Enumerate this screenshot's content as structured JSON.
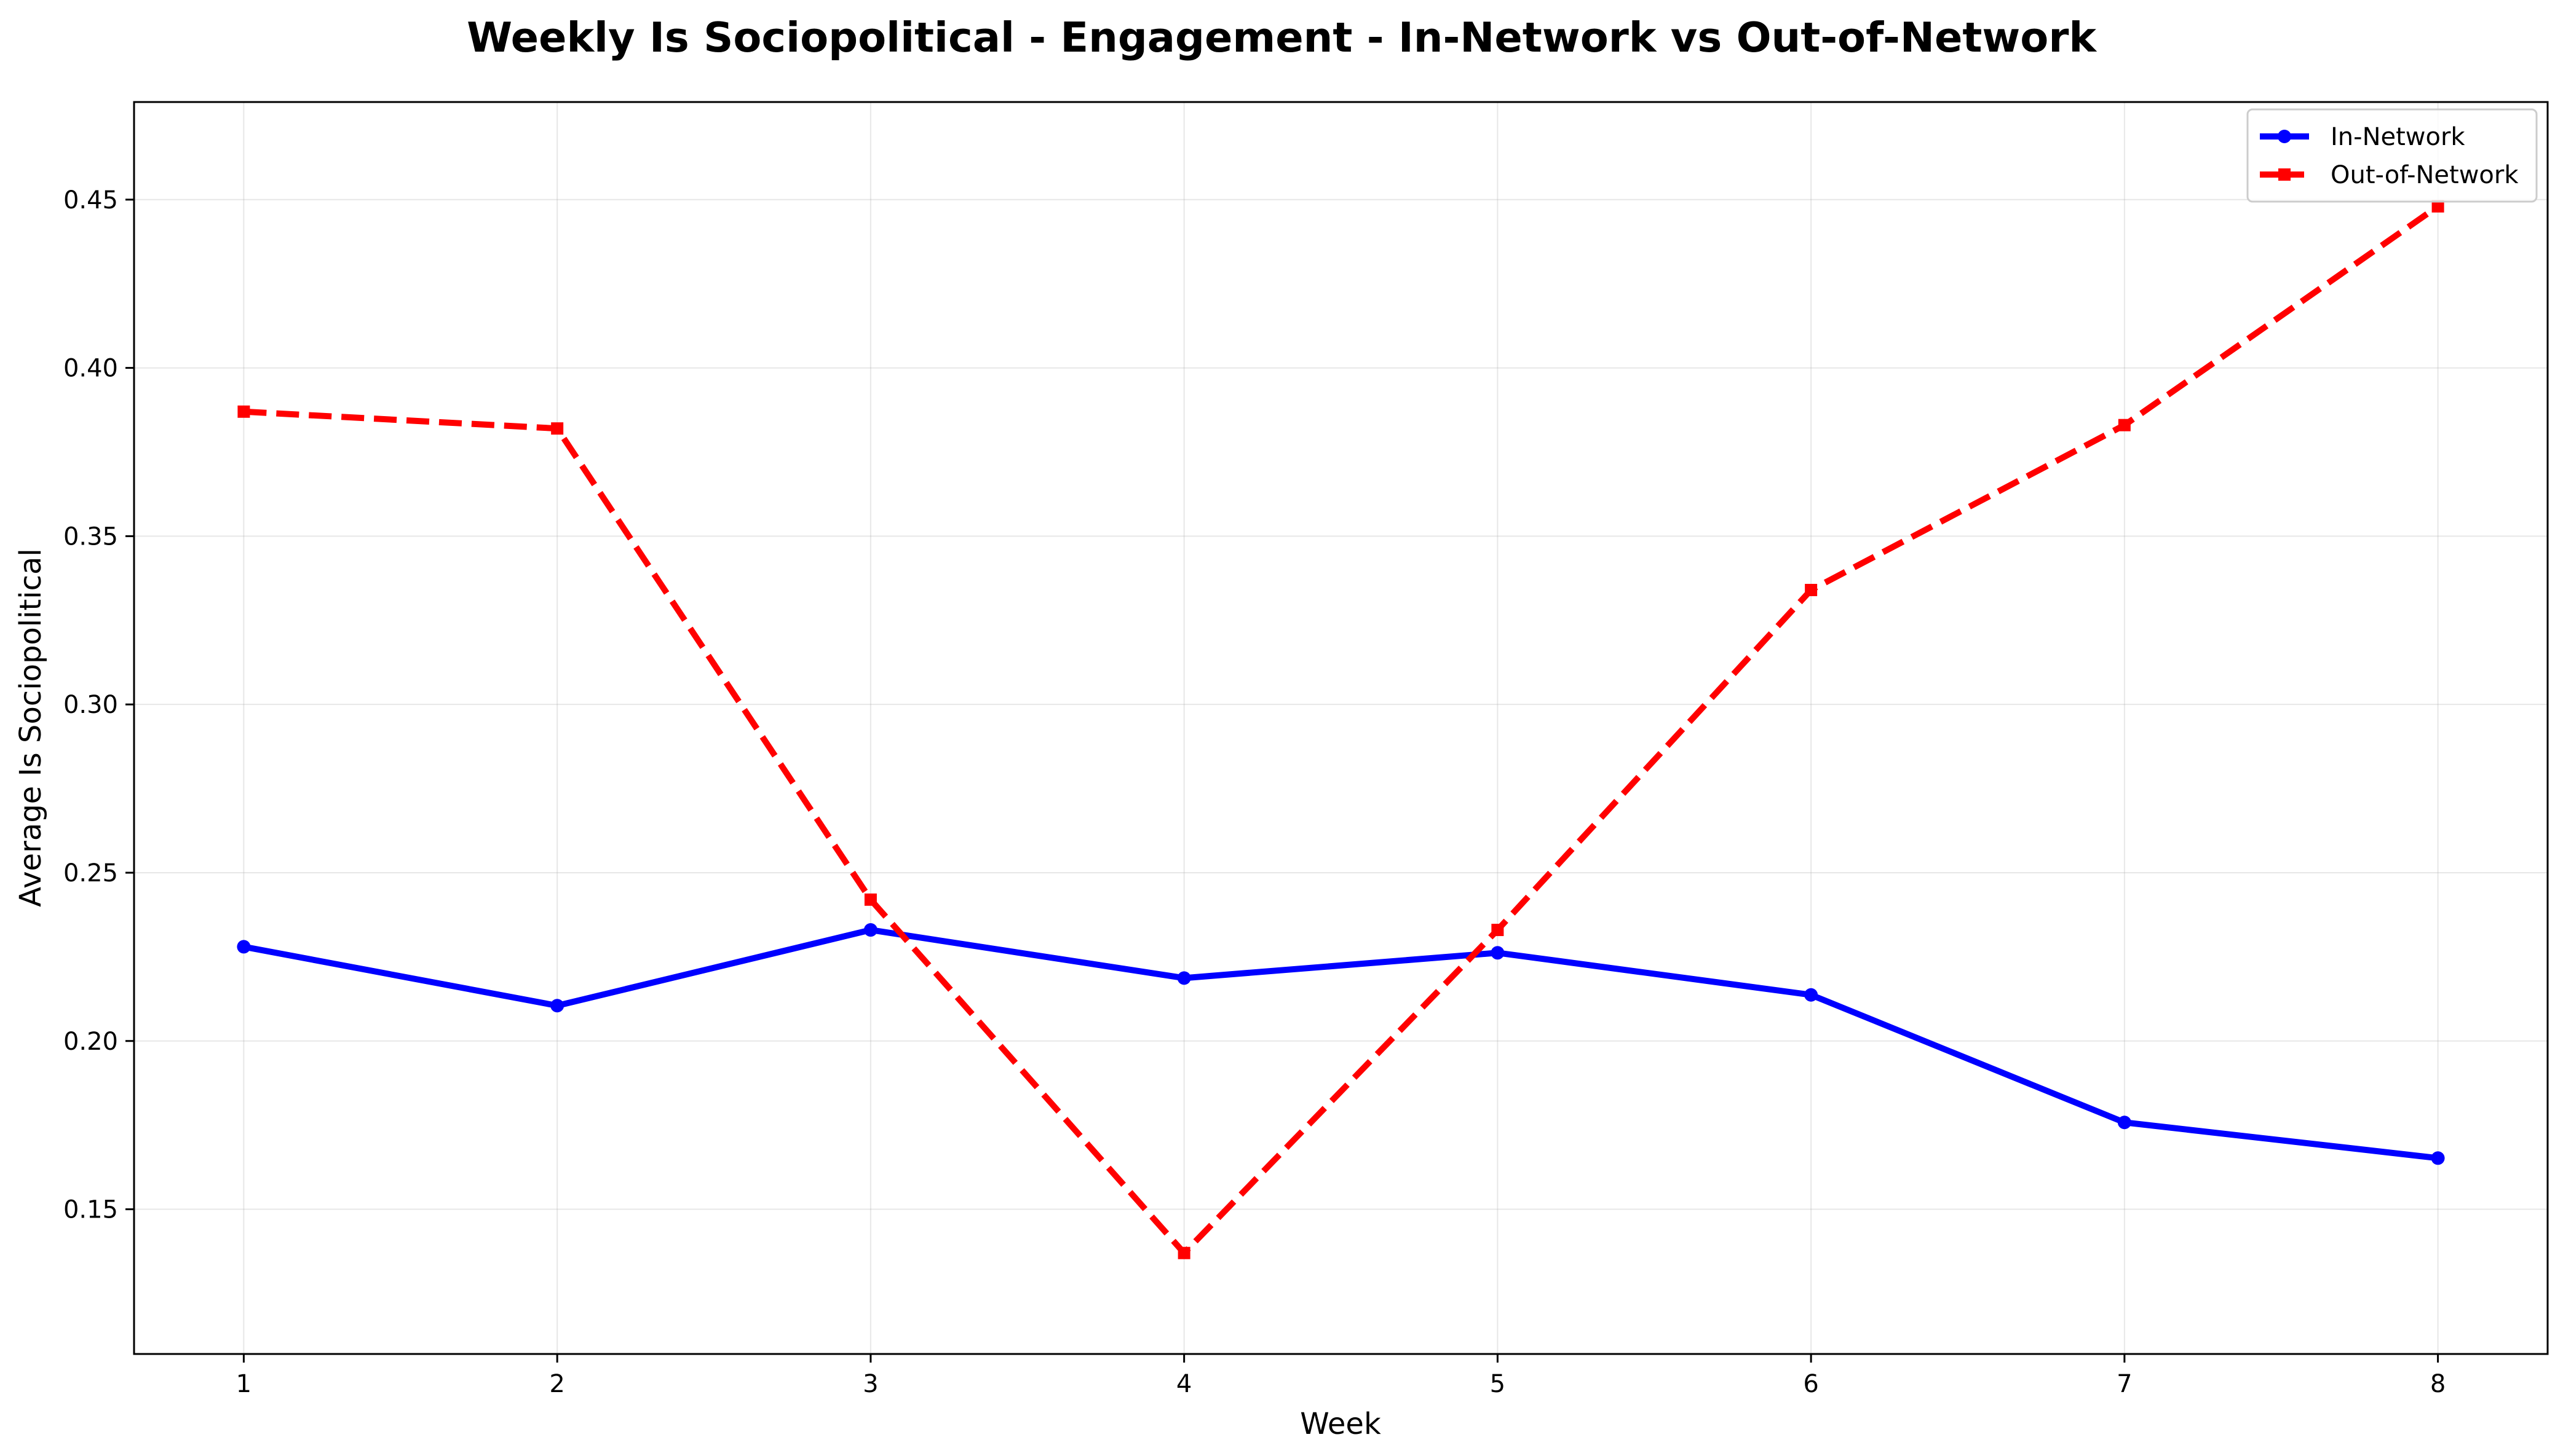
{
  "chart_data": {
    "type": "line",
    "title": "Weekly Is Sociopolitical - Engagement - In-Network vs Out-of-Network",
    "xlabel": "Week",
    "ylabel": "Average Is Sociopolitical",
    "x": [
      1,
      2,
      3,
      4,
      5,
      6,
      7,
      8
    ],
    "x_tick_labels": [
      "1",
      "2",
      "3",
      "4",
      "5",
      "6",
      "7",
      "8"
    ],
    "y_ticks": [
      0.15,
      0.2,
      0.25,
      0.3,
      0.35,
      0.4,
      0.45
    ],
    "y_tick_labels": [
      "0.15",
      "0.20",
      "0.25",
      "0.30",
      "0.35",
      "0.40",
      "0.45"
    ],
    "xlim": [
      0.65,
      8.35
    ],
    "ylim": [
      0.107,
      0.479
    ],
    "grid": true,
    "legend_position": "top-right",
    "series": [
      {
        "name": "In-Network",
        "color": "#0000ff",
        "line_style": "solid",
        "marker": "circle",
        "values": [
          0.228,
          0.2105,
          0.233,
          0.2187,
          0.2262,
          0.2137,
          0.1758,
          0.1652
        ]
      },
      {
        "name": "Out-of-Network",
        "color": "#ff0000",
        "line_style": "dashed",
        "marker": "square",
        "values": [
          0.387,
          0.382,
          0.242,
          0.137,
          0.233,
          0.334,
          0.383,
          0.448
        ]
      }
    ]
  }
}
